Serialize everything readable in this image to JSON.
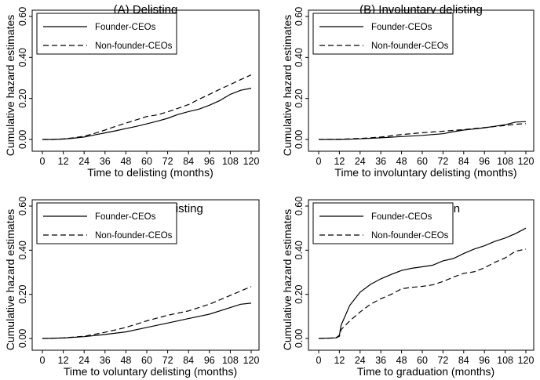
{
  "chart_data": [
    {
      "type": "line",
      "title": "(A) Delisting",
      "xlabel": "Time to delisting (months)",
      "ylabel": "Cumulative hazard estimates",
      "xlim": [
        0,
        120
      ],
      "ylim": [
        0,
        0.6
      ],
      "xticks": [
        "0",
        "12",
        "24",
        "36",
        "48",
        "60",
        "72",
        "84",
        "96",
        "108",
        "120"
      ],
      "yticks": [
        "0.00",
        "0.20",
        "0.40",
        "0.60"
      ],
      "legend_position": "top-left",
      "series": [
        {
          "name": "Founder-CEOs",
          "style": "solid",
          "x": [
            0,
            6,
            12,
            18,
            24,
            30,
            36,
            42,
            48,
            54,
            60,
            66,
            72,
            78,
            84,
            90,
            96,
            102,
            108,
            114,
            120
          ],
          "y": [
            0,
            0,
            0.002,
            0.006,
            0.012,
            0.022,
            0.032,
            0.042,
            0.053,
            0.064,
            0.076,
            0.089,
            0.103,
            0.122,
            0.136,
            0.148,
            0.167,
            0.19,
            0.22,
            0.24,
            0.25
          ]
        },
        {
          "name": "Non-founder-CEOs",
          "style": "dashed",
          "x": [
            0,
            6,
            12,
            18,
            24,
            30,
            36,
            42,
            48,
            54,
            60,
            66,
            72,
            78,
            84,
            90,
            96,
            102,
            108,
            114,
            120
          ],
          "y": [
            0,
            0,
            0.003,
            0.008,
            0.016,
            0.03,
            0.046,
            0.064,
            0.08,
            0.096,
            0.112,
            0.12,
            0.135,
            0.152,
            0.17,
            0.196,
            0.22,
            0.245,
            0.268,
            0.292,
            0.315
          ]
        }
      ]
    },
    {
      "type": "line",
      "title": "(B) Involuntary delisting",
      "xlabel": "Time to involuntary delisting (months)",
      "ylabel": "Cumulative hazard estimates",
      "xlim": [
        0,
        120
      ],
      "ylim": [
        0,
        0.6
      ],
      "xticks": [
        "0",
        "12",
        "24",
        "36",
        "48",
        "60",
        "72",
        "84",
        "96",
        "108",
        "120"
      ],
      "yticks": [
        "0.00",
        "0.20",
        "0.40",
        "0.60"
      ],
      "legend_position": "top-left",
      "series": [
        {
          "name": "Founder-CEOs",
          "style": "solid",
          "x": [
            0,
            12,
            24,
            36,
            48,
            60,
            72,
            78,
            84,
            96,
            108,
            114,
            120
          ],
          "y": [
            0,
            0,
            0.003,
            0.008,
            0.014,
            0.02,
            0.028,
            0.038,
            0.046,
            0.057,
            0.072,
            0.085,
            0.087
          ]
        },
        {
          "name": "Non-founder-CEOs",
          "style": "dashed",
          "x": [
            0,
            12,
            24,
            36,
            48,
            60,
            72,
            84,
            96,
            108,
            114,
            120
          ],
          "y": [
            0,
            0.001,
            0.005,
            0.012,
            0.024,
            0.033,
            0.04,
            0.048,
            0.058,
            0.068,
            0.074,
            0.077
          ]
        }
      ]
    },
    {
      "type": "line",
      "title": "(C) Voluntary delisting",
      "xlabel": "Time to voluntary delisting (months)",
      "ylabel": "Cumulative hazard estimates",
      "xlim": [
        0,
        120
      ],
      "ylim": [
        0,
        0.6
      ],
      "xticks": [
        "0",
        "12",
        "24",
        "36",
        "48",
        "60",
        "72",
        "84",
        "96",
        "108",
        "120"
      ],
      "yticks": [
        "0.00",
        "0.20",
        "0.40",
        "0.60"
      ],
      "legend_position": "top-left",
      "series": [
        {
          "name": "Founder-CEOs",
          "style": "solid",
          "x": [
            0,
            12,
            24,
            36,
            48,
            60,
            72,
            84,
            96,
            108,
            114,
            120
          ],
          "y": [
            0,
            0.002,
            0.008,
            0.018,
            0.03,
            0.05,
            0.07,
            0.09,
            0.11,
            0.14,
            0.155,
            0.16
          ]
        },
        {
          "name": "Non-founder-CEOs",
          "style": "dashed",
          "x": [
            0,
            12,
            24,
            36,
            48,
            60,
            72,
            84,
            96,
            108,
            114,
            120
          ],
          "y": [
            0,
            0.003,
            0.01,
            0.028,
            0.05,
            0.08,
            0.105,
            0.125,
            0.155,
            0.195,
            0.215,
            0.235
          ]
        }
      ]
    },
    {
      "type": "line",
      "title": "(D) Graduation",
      "xlabel": "Time to graduation (months)",
      "ylabel": "Cumulative hazard estimates",
      "xlim": [
        0,
        120
      ],
      "ylim": [
        0,
        0.6
      ],
      "xticks": [
        "0",
        "12",
        "24",
        "36",
        "48",
        "60",
        "72",
        "84",
        "96",
        "108",
        "120"
      ],
      "yticks": [
        "0.00",
        "0.20",
        "0.40",
        "0.60"
      ],
      "legend_position": "top-left",
      "series": [
        {
          "name": "Founder-CEOs",
          "style": "solid",
          "x": [
            0,
            10,
            12,
            13,
            18,
            24,
            30,
            36,
            42,
            48,
            54,
            60,
            66,
            72,
            78,
            84,
            90,
            96,
            102,
            108,
            114,
            120
          ],
          "y": [
            0,
            0.003,
            0.015,
            0.06,
            0.15,
            0.21,
            0.245,
            0.27,
            0.29,
            0.308,
            0.318,
            0.325,
            0.332,
            0.352,
            0.362,
            0.385,
            0.405,
            0.42,
            0.44,
            0.455,
            0.475,
            0.5
          ]
        },
        {
          "name": "Non-founder-CEOs",
          "style": "dashed",
          "x": [
            0,
            10,
            12,
            13,
            18,
            24,
            30,
            36,
            42,
            48,
            54,
            60,
            66,
            72,
            78,
            84,
            90,
            96,
            102,
            108,
            114,
            120
          ],
          "y": [
            0,
            0.002,
            0.01,
            0.04,
            0.08,
            0.12,
            0.155,
            0.18,
            0.2,
            0.225,
            0.232,
            0.236,
            0.243,
            0.258,
            0.278,
            0.295,
            0.302,
            0.32,
            0.345,
            0.365,
            0.395,
            0.405
          ]
        }
      ]
    }
  ]
}
